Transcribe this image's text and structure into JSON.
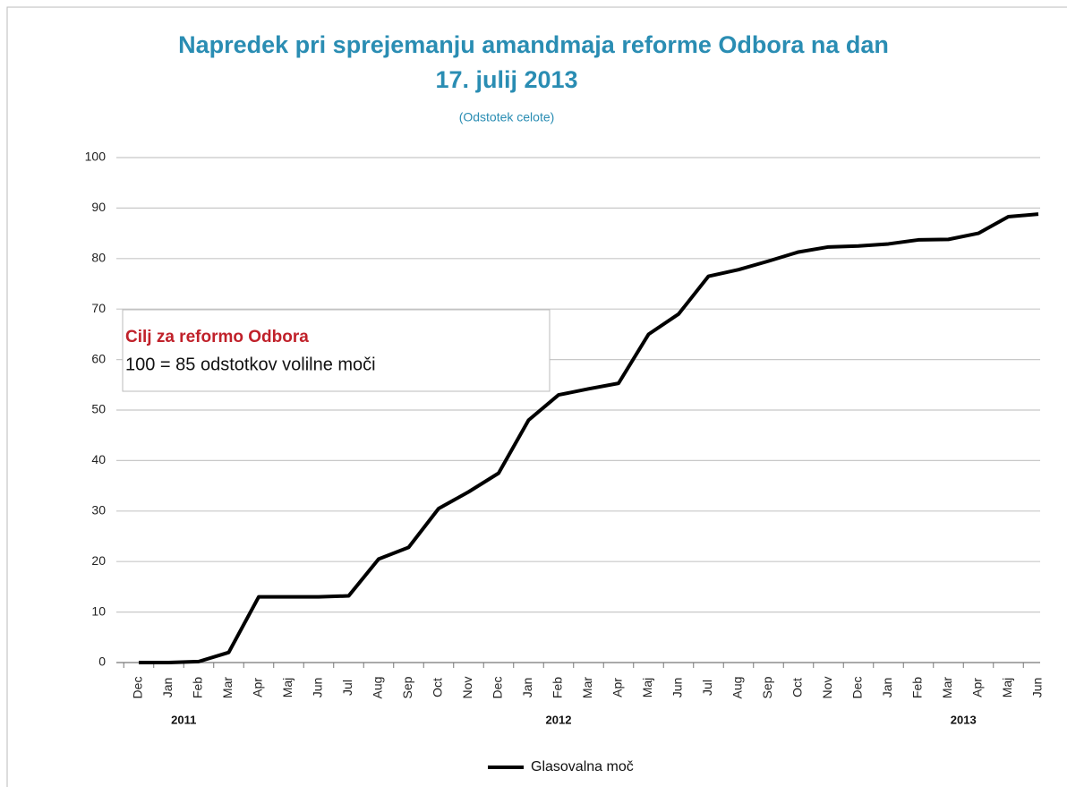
{
  "chart_data": {
    "type": "line",
    "title": [
      "Napredek pri sprejemanju amandmaja reforme Odbora na dan",
      "17. julij 2013"
    ],
    "subtitle": "(Odstotek celote)",
    "categories": [
      "Dec",
      "Jan",
      "Feb",
      "Mar",
      "Apr",
      "Maj",
      "Jun",
      "Jul",
      "Aug",
      "Sep",
      "Oct",
      "Nov",
      "Dec",
      "Jan",
      "Feb",
      "Mar",
      "Apr",
      "Maj",
      "Jun",
      "Jul",
      "Aug",
      "Sep",
      "Oct",
      "Nov",
      "Dec",
      "Jan",
      "Feb",
      "Mar",
      "Apr",
      "Maj",
      "Jun"
    ],
    "year_labels": [
      "2011",
      "2012",
      "2013"
    ],
    "series": [
      {
        "name": "Glasovalna moč",
        "color": "#000000",
        "values": [
          0,
          0,
          0.2,
          2,
          13,
          13,
          13,
          13.2,
          20.5,
          22.8,
          30.5,
          33.8,
          37.5,
          48,
          53,
          54.2,
          55.3,
          65,
          69,
          76.5,
          77.8,
          79.5,
          81.3,
          82.3,
          82.5,
          82.9,
          83.7,
          83.8,
          85,
          88.3,
          88.8
        ]
      }
    ],
    "ylim": [
      0,
      100
    ],
    "yticks": [
      0,
      10,
      20,
      30,
      40,
      50,
      60,
      70,
      80,
      90,
      100
    ],
    "grid": true,
    "annotation": {
      "title": "Cilj za reformo Odbora",
      "text": "100 = 85 odstotkov volilne moči"
    }
  }
}
